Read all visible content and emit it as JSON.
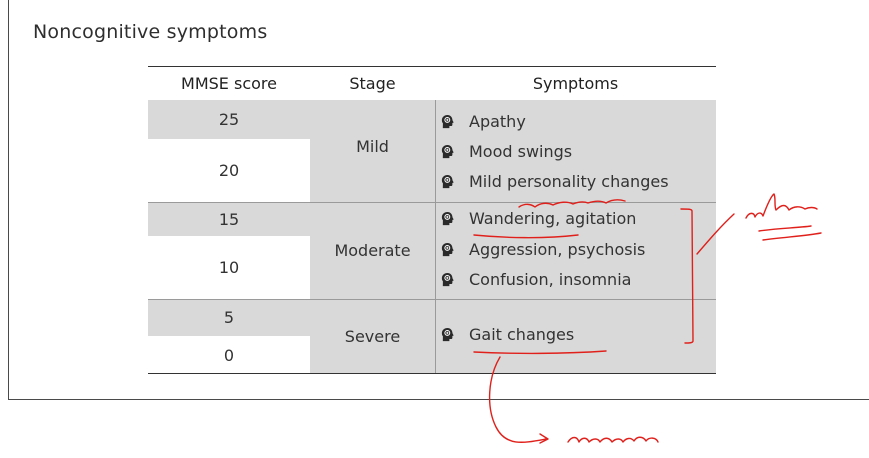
{
  "title": "Noncognitive symptoms",
  "table": {
    "headers": [
      "MMSE score",
      "Stage",
      "Symptoms"
    ],
    "scores": [
      "25",
      "20",
      "15",
      "10",
      "5",
      "0"
    ],
    "stages": [
      "Mild",
      "Moderate",
      "Severe"
    ],
    "symptoms": [
      "Apathy",
      "Mood swings",
      "Mild personality changes",
      "Wandering, agitation",
      "Aggression, psychosis",
      "Confusion, insomnia",
      "Gait changes"
    ]
  },
  "annotation_color": "#e0201b",
  "header_bg": "#ffffff",
  "shaded_bg": "#d9d9d9",
  "symptom_icon": "brain-head-icon"
}
